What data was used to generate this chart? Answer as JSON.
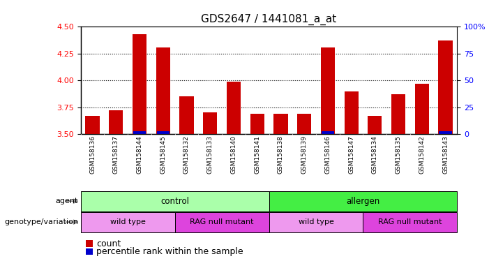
{
  "title": "GDS2647 / 1441081_a_at",
  "samples": [
    "GSM158136",
    "GSM158137",
    "GSM158144",
    "GSM158145",
    "GSM158132",
    "GSM158133",
    "GSM158140",
    "GSM158141",
    "GSM158138",
    "GSM158139",
    "GSM158146",
    "GSM158147",
    "GSM158134",
    "GSM158135",
    "GSM158142",
    "GSM158143"
  ],
  "counts": [
    3.67,
    3.72,
    4.43,
    4.31,
    3.85,
    3.7,
    3.99,
    3.69,
    3.69,
    3.69,
    4.31,
    3.9,
    3.67,
    3.87,
    3.97,
    4.37
  ],
  "percentile_ranks": [
    0,
    0,
    2,
    2,
    0,
    0,
    0,
    0,
    0,
    0,
    2,
    0,
    0,
    0,
    0,
    2
  ],
  "ylim_left": [
    3.5,
    4.5
  ],
  "ylim_right": [
    0,
    100
  ],
  "yticks_left": [
    3.5,
    3.75,
    4.0,
    4.25,
    4.5
  ],
  "yticks_right": [
    0,
    25,
    50,
    75,
    100
  ],
  "bar_color": "#cc0000",
  "percentile_color": "#0000cc",
  "bar_width": 0.6,
  "agent_groups": [
    {
      "label": "control",
      "start": 0,
      "end": 8,
      "color": "#aaffaa"
    },
    {
      "label": "allergen",
      "start": 8,
      "end": 16,
      "color": "#44ee44"
    }
  ],
  "genotype_groups": [
    {
      "label": "wild type",
      "start": 0,
      "end": 4,
      "color": "#ee99ee"
    },
    {
      "label": "RAG null mutant",
      "start": 4,
      "end": 8,
      "color": "#dd44dd"
    },
    {
      "label": "wild type",
      "start": 8,
      "end": 12,
      "color": "#ee99ee"
    },
    {
      "label": "RAG null mutant",
      "start": 12,
      "end": 16,
      "color": "#dd44dd"
    }
  ],
  "agent_label": "agent",
  "genotype_label": "genotype/variation",
  "legend_count_label": "count",
  "legend_pct_label": "percentile rank within the sample",
  "background_color": "#ffffff",
  "tick_label_area_color": "#cccccc",
  "title_fontsize": 11,
  "tick_fontsize": 8,
  "legend_fontsize": 9
}
